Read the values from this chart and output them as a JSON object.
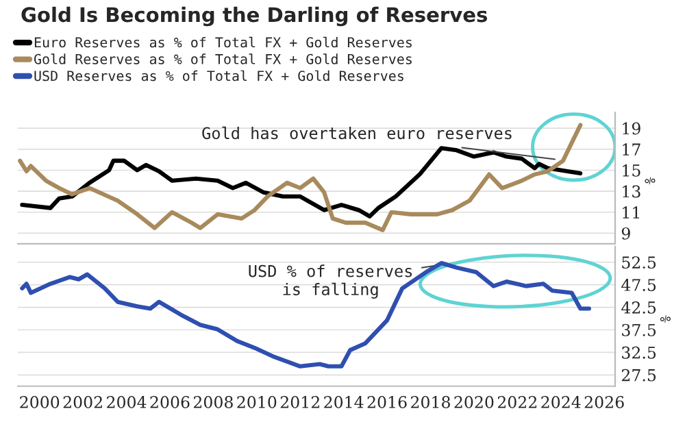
{
  "chart_data": [
    {
      "type": "line",
      "title": "Gold Is Becoming the Darling of Reserves",
      "legend": "top left",
      "grid": "y",
      "tick_labels": "y",
      "ylabel": "%",
      "xlim": [
        1999,
        2026.5
      ],
      "xticks": [
        2000,
        2002,
        2004,
        2006,
        2008,
        2010,
        2012,
        2014,
        2016,
        2018,
        2020,
        2022,
        2024,
        2026
      ],
      "ylim": [
        8,
        20.5
      ],
      "yticks": [
        9,
        11,
        13,
        15,
        17,
        19
      ],
      "annotations": [
        {
          "text": "Gold has overtaken euro reserves",
          "x": 2023.9,
          "y": 16.0
        }
      ],
      "series": [
        {
          "name": "Euro Reserves as % of Total FX + Gold Reserves",
          "color": "#000000",
          "x": [
            1999.2,
            2000.5,
            2000.9,
            2001.5,
            2002.3,
            2003.2,
            2003.4,
            2003.9,
            2004.5,
            2004.9,
            2005.5,
            2006.1,
            2007.2,
            2008.2,
            2008.9,
            2009.5,
            2010.3,
            2011.2,
            2012.0,
            2013.1,
            2013.9,
            2014.7,
            2015.2,
            2015.6,
            2016.4,
            2017.5,
            2018.5,
            2019.2,
            2020.0,
            2020.9,
            2021.5,
            2022.2,
            2022.8,
            2023.0,
            2023.4,
            2024.3,
            2024.9
          ],
          "values": [
            11.7,
            11.4,
            12.3,
            12.5,
            13.8,
            15.0,
            15.9,
            15.9,
            15.0,
            15.5,
            14.9,
            14.0,
            14.2,
            14.0,
            13.3,
            13.8,
            12.9,
            12.5,
            12.5,
            11.2,
            11.7,
            11.2,
            10.6,
            11.4,
            12.5,
            14.6,
            17.1,
            16.9,
            16.3,
            16.7,
            16.3,
            16.1,
            15.2,
            15.6,
            15.2,
            14.9,
            14.7
          ]
        },
        {
          "name": "Gold Reserves as % of Total FX + Gold Reserves",
          "color": "#a88a5c",
          "x": [
            1999.1,
            1999.4,
            1999.6,
            2000.3,
            2000.9,
            2001.5,
            2002.3,
            2003.6,
            2004.5,
            2005.3,
            2006.1,
            2007.0,
            2007.4,
            2008.2,
            2009.3,
            2009.9,
            2010.5,
            2011.4,
            2012.0,
            2012.6,
            2013.1,
            2013.5,
            2014.1,
            2015.0,
            2015.8,
            2016.2,
            2017.1,
            2018.3,
            2019.0,
            2019.8,
            2020.7,
            2021.3,
            2022.2,
            2022.8,
            2023.4,
            2024.1,
            2024.9
          ],
          "values": [
            15.9,
            14.9,
            15.4,
            14.0,
            13.3,
            12.7,
            13.3,
            12.1,
            10.8,
            9.5,
            11.0,
            10.0,
            9.5,
            10.8,
            10.4,
            11.2,
            12.5,
            13.8,
            13.3,
            14.2,
            12.9,
            10.4,
            10.0,
            10.0,
            9.3,
            11.0,
            10.8,
            10.8,
            11.2,
            12.1,
            14.6,
            13.3,
            14.0,
            14.6,
            14.9,
            15.9,
            19.3
          ]
        }
      ]
    },
    {
      "type": "line",
      "grid": "y",
      "ylabel": "%",
      "xlim": [
        1999,
        2026.5
      ],
      "xticks": [
        2000,
        2002,
        2004,
        2006,
        2008,
        2010,
        2012,
        2014,
        2016,
        2018,
        2020,
        2022,
        2024,
        2026
      ],
      "ylim": [
        25,
        56
      ],
      "yticks": [
        27.5,
        32.5,
        37.5,
        42.5,
        47.5,
        52.5
      ],
      "annotations": [
        {
          "text": "USD % of reserves\nis falling",
          "x": 2018.3,
          "y": 51.8
        }
      ],
      "series": [
        {
          "name": "USD Reserves as % of Total FX + Gold Reserves",
          "color": "#2f4fb0",
          "x": [
            1999.2,
            1999.4,
            1999.6,
            2000.5,
            2001.4,
            2001.8,
            2002.2,
            2003.0,
            2003.6,
            2004.5,
            2005.1,
            2005.5,
            2006.6,
            2007.4,
            2008.2,
            2009.1,
            2009.9,
            2010.8,
            2012.0,
            2012.9,
            2013.3,
            2013.9,
            2014.3,
            2015.0,
            2016.0,
            2016.7,
            2017.8,
            2018.5,
            2019.2,
            2020.1,
            2020.9,
            2021.5,
            2022.4,
            2023.2,
            2023.6,
            2024.5,
            2024.9,
            2025.3
          ],
          "values": [
            46.7,
            47.7,
            45.7,
            47.7,
            49.2,
            48.7,
            49.8,
            46.7,
            43.7,
            42.7,
            42.2,
            43.7,
            40.6,
            38.6,
            37.6,
            35.0,
            33.5,
            31.5,
            29.4,
            29.9,
            29.4,
            29.4,
            33.0,
            34.5,
            39.6,
            46.7,
            50.3,
            52.3,
            51.3,
            50.3,
            47.2,
            48.2,
            47.2,
            47.7,
            46.2,
            45.7,
            42.2,
            42.2
          ]
        }
      ]
    }
  ]
}
